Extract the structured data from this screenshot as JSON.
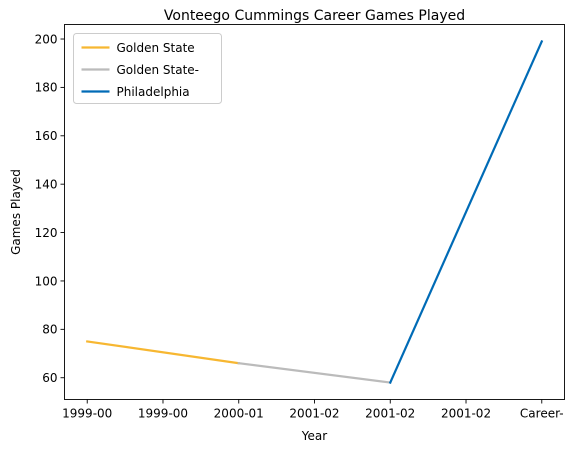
{
  "chart_data": {
    "type": "line",
    "title": "Vonteego Cummings Career Games Played",
    "xlabel": "Year",
    "ylabel": "Games Played",
    "categories": [
      "1999-00",
      "1999-00",
      "2000-01",
      "2001-02",
      "2001-02",
      "2001-02",
      "Career-"
    ],
    "ylim": [
      51,
      206
    ],
    "yticks": [
      60,
      80,
      100,
      120,
      140,
      160,
      180,
      200
    ],
    "grid": false,
    "legend_position": "top-left",
    "series": [
      {
        "name": "Golden State",
        "color": "#f7b731",
        "points": [
          {
            "x": 0,
            "y": 75
          },
          {
            "x": 2,
            "y": 66
          }
        ]
      },
      {
        "name": "Golden State-",
        "color": "#bbbbbb",
        "points": [
          {
            "x": 2,
            "y": 66
          },
          {
            "x": 4,
            "y": 58
          }
        ]
      },
      {
        "name": "Philadelphia",
        "color": "#006bb6",
        "points": [
          {
            "x": 4,
            "y": 58
          },
          {
            "x": 6,
            "y": 199
          }
        ]
      }
    ]
  }
}
